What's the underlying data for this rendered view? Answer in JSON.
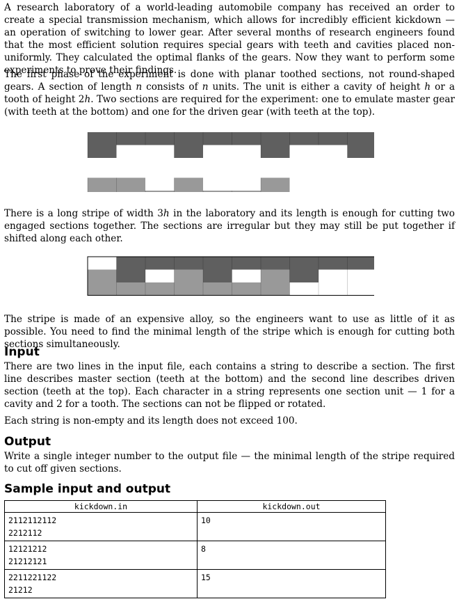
{
  "paragraphs": {
    "intro": "A research laboratory of a world-leading automobile company has received an order to create a special transmission mechanism, which allows for incredibly efficient kickdown — an operation of switching to lower gear. After several months of research engineers found that the most efficient solution requires special gears with teeth and cavities placed non-uniformly. They calculated the optimal flanks of the gears. Now they want to perform some experiments to prove their findings.",
    "phase_a": "The first phase of the experiment is done with planar toothed sections, not round-shaped gears. A section of length ",
    "phase_n1": "n",
    "phase_b": " consists of ",
    "phase_n2": "n",
    "phase_c": " units. The unit is either a cavity of height ",
    "phase_h": "h",
    "phase_d": " or a tooth of height 2",
    "phase_h2": "h",
    "phase_e": ". Two sections are required for the experiment: one to emulate master gear (with teeth at the bottom) and one for the driven gear (with teeth at the top).",
    "stripe_a": "There is a long stripe of width 3",
    "stripe_h": "h",
    "stripe_b": " in the laboratory and its length is enough for cutting two engaged sections together. The sections are irregular but they may still be put together if shifted along each other.",
    "alloy": "The stripe is made of an expensive alloy, so the engineers want to use as little of it as possible. You need to find the minimal length of the stripe which is enough for cutting both sections simultaneously.",
    "input_1": "There are two lines in the input file, each contains a string to describe a section. The first line describes master section (teeth at the bottom) and the second line describes driven section (teeth at the top). Each character in a string represents one section unit — 1 for a cavity and 2 for a tooth. The sections can not be flipped or rotated.",
    "input_2": "Each string is non-empty and its length does not exceed 100.",
    "output_1": "Write a single integer number to the output file — the minimal length of the stripe required to cut off given sections."
  },
  "headings": {
    "input": "Input",
    "output": "Output",
    "sample": "Sample input and output"
  },
  "figures": {
    "colors": {
      "master": "#5f5f5f",
      "driven": "#999999",
      "empty": "#ffffff",
      "outline": "#000000"
    },
    "figure1": {
      "master": "2112112112",
      "driven": "2212112",
      "shift": 0
    },
    "figure2": {
      "master": "2112112112",
      "driven": "2212112",
      "shift": 1
    }
  },
  "table": {
    "headers": [
      "kickdown.in",
      "kickdown.out"
    ],
    "rows": [
      {
        "in1": "2112112112",
        "in2": "2212112",
        "out": "10"
      },
      {
        "in1": "12121212",
        "in2": "21212121",
        "out": "8"
      },
      {
        "in1": "2211221122",
        "in2": "21212",
        "out": "15"
      }
    ]
  }
}
